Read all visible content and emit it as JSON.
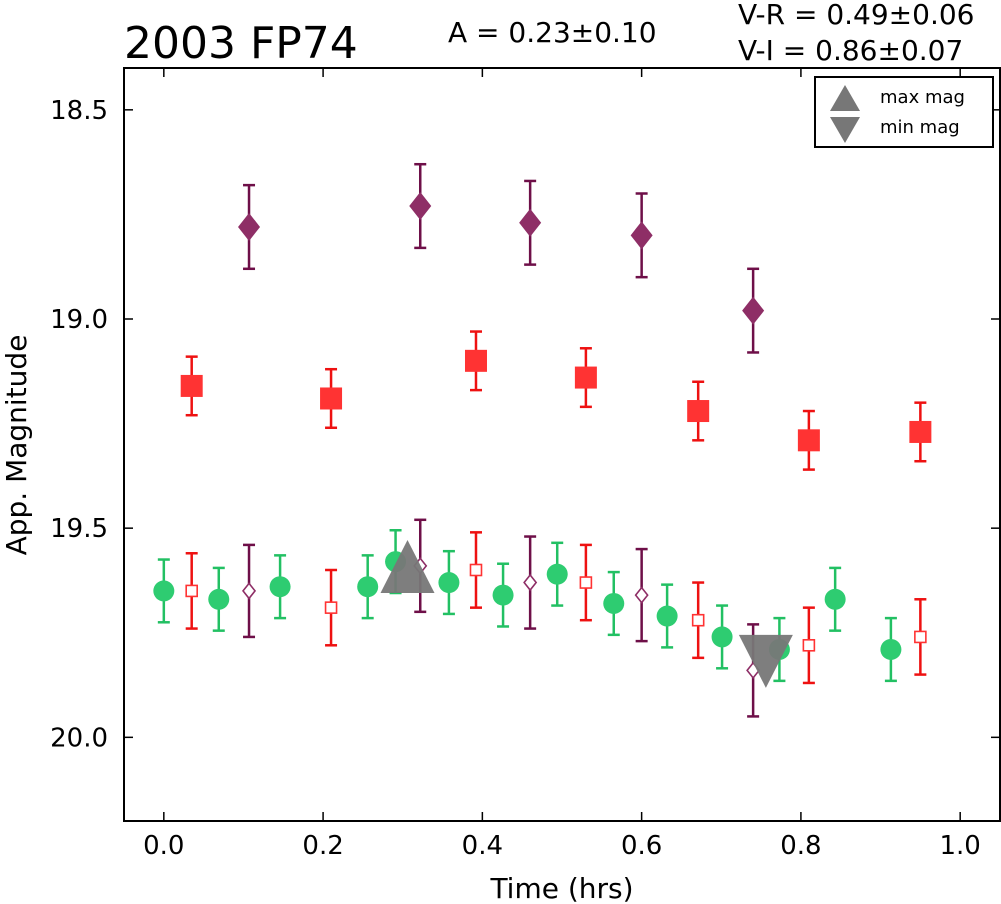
{
  "chart_data": {
    "type": "scatter",
    "title": "2003 FP74",
    "amplitude_label": "A  = 0.23±0.10",
    "color_indices": [
      "V-R = 0.49±0.06",
      "V-I  = 0.86±0.07"
    ],
    "xlabel": "Time (hrs)",
    "ylabel": "App. Magnitude",
    "xlim": [
      -0.05,
      1.05
    ],
    "ylim": [
      20.2,
      18.4
    ],
    "y_inverted": true,
    "xticks": [
      0.0,
      0.2,
      0.4,
      0.6,
      0.8,
      1.0
    ],
    "xtick_labels": [
      "0.0",
      "0.2",
      "0.4",
      "0.6",
      "0.8",
      "1.0"
    ],
    "yticks": [
      18.5,
      19.0,
      19.5,
      20.0
    ],
    "ytick_labels": [
      "18.5",
      "19.0",
      "19.5",
      "20.0"
    ],
    "grid": false,
    "legend": {
      "placement": "top-right",
      "entries": [
        {
          "marker": "triangle-up",
          "label": "max mag"
        },
        {
          "marker": "triangle-down",
          "label": "min mag"
        }
      ]
    },
    "colors": {
      "green": "#2ecc71",
      "green_bar": "#22c063",
      "red": "#ff3333",
      "red_bar": "#ee1111",
      "purple": "#8e2e66",
      "purple_bar": "#6e0f48",
      "extremum": "#777777"
    },
    "series": [
      {
        "marker": "circle",
        "filled": true,
        "color_key": "green",
        "points": [
          {
            "x": 0.0,
            "y": 19.65,
            "err": 0.075
          },
          {
            "x": 0.069,
            "y": 19.67,
            "err": 0.075
          },
          {
            "x": 0.146,
            "y": 19.64,
            "err": 0.075
          },
          {
            "x": 0.256,
            "y": 19.64,
            "err": 0.075
          },
          {
            "x": 0.291,
            "y": 19.58,
            "err": 0.075
          },
          {
            "x": 0.358,
            "y": 19.63,
            "err": 0.075
          },
          {
            "x": 0.426,
            "y": 19.66,
            "err": 0.075
          },
          {
            "x": 0.494,
            "y": 19.61,
            "err": 0.075
          },
          {
            "x": 0.565,
            "y": 19.68,
            "err": 0.075
          },
          {
            "x": 0.632,
            "y": 19.71,
            "err": 0.075
          },
          {
            "x": 0.701,
            "y": 19.76,
            "err": 0.075
          },
          {
            "x": 0.773,
            "y": 19.79,
            "err": 0.075
          },
          {
            "x": 0.843,
            "y": 19.67,
            "err": 0.075
          },
          {
            "x": 0.913,
            "y": 19.79,
            "err": 0.075
          }
        ]
      },
      {
        "marker": "square",
        "filled": false,
        "color_key": "red",
        "points": [
          {
            "x": 0.035,
            "y": 19.65,
            "err": 0.09
          },
          {
            "x": 0.21,
            "y": 19.69,
            "err": 0.09
          },
          {
            "x": 0.392,
            "y": 19.6,
            "err": 0.09
          },
          {
            "x": 0.53,
            "y": 19.63,
            "err": 0.09
          },
          {
            "x": 0.671,
            "y": 19.72,
            "err": 0.09
          },
          {
            "x": 0.81,
            "y": 19.78,
            "err": 0.09
          },
          {
            "x": 0.95,
            "y": 19.76,
            "err": 0.09
          }
        ]
      },
      {
        "marker": "diamond",
        "filled": false,
        "color_key": "purple",
        "points": [
          {
            "x": 0.107,
            "y": 19.65,
            "err": 0.11
          },
          {
            "x": 0.322,
            "y": 19.59,
            "err": 0.11
          },
          {
            "x": 0.46,
            "y": 19.63,
            "err": 0.11
          },
          {
            "x": 0.6,
            "y": 19.66,
            "err": 0.11
          },
          {
            "x": 0.74,
            "y": 19.84,
            "err": 0.11
          }
        ]
      },
      {
        "marker": "square",
        "filled": true,
        "color_key": "red",
        "points": [
          {
            "x": 0.035,
            "y": 19.16,
            "err": 0.07
          },
          {
            "x": 0.21,
            "y": 19.19,
            "err": 0.07
          },
          {
            "x": 0.392,
            "y": 19.1,
            "err": 0.07
          },
          {
            "x": 0.53,
            "y": 19.14,
            "err": 0.07
          },
          {
            "x": 0.671,
            "y": 19.22,
            "err": 0.07
          },
          {
            "x": 0.81,
            "y": 19.29,
            "err": 0.07
          },
          {
            "x": 0.95,
            "y": 19.27,
            "err": 0.07
          }
        ]
      },
      {
        "marker": "diamond",
        "filled": true,
        "color_key": "purple",
        "points": [
          {
            "x": 0.107,
            "y": 18.78,
            "err": 0.1
          },
          {
            "x": 0.322,
            "y": 18.73,
            "err": 0.1
          },
          {
            "x": 0.46,
            "y": 18.77,
            "err": 0.1
          },
          {
            "x": 0.6,
            "y": 18.8,
            "err": 0.1
          },
          {
            "x": 0.74,
            "y": 18.98,
            "err": 0.1
          }
        ]
      }
    ],
    "extrema": [
      {
        "marker": "triangle-up",
        "x": 0.306,
        "y": 19.6
      },
      {
        "marker": "triangle-down",
        "x": 0.756,
        "y": 19.81
      }
    ]
  }
}
